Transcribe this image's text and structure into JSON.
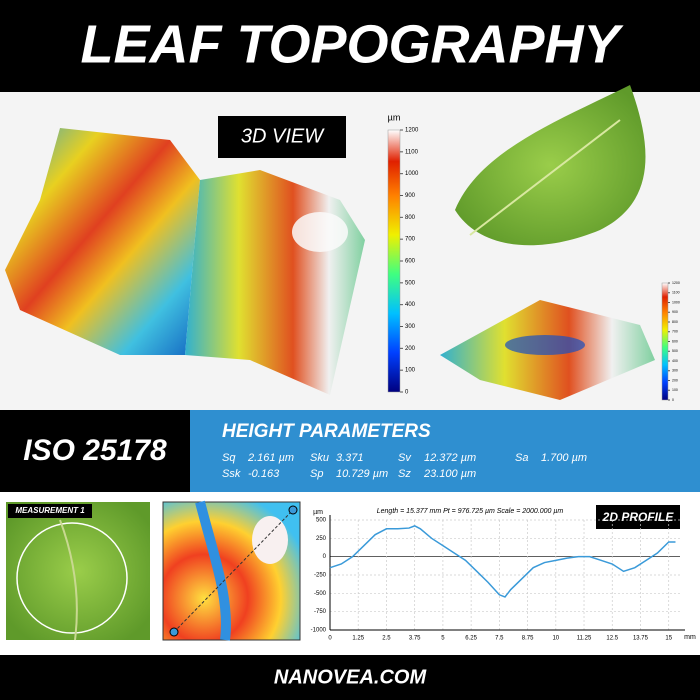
{
  "header": {
    "title": "LEAF TOPOGRAPHY"
  },
  "view_label": "3D VIEW",
  "colorbar": {
    "unit": "µm",
    "lim": [
      0,
      1200
    ],
    "ticks": [
      0,
      100,
      200,
      300,
      400,
      500,
      600,
      700,
      800,
      900,
      1000,
      1100,
      1200
    ]
  },
  "standard": "ISO 25178",
  "parameters": {
    "title": "HEIGHT PARAMETERS",
    "items": [
      {
        "name": "Sq",
        "value": "2.161 µm"
      },
      {
        "name": "Sku",
        "value": "3.371"
      },
      {
        "name": "Sv",
        "value": "12.372 µm"
      },
      {
        "name": "Sa",
        "value": "1.700 µm"
      },
      {
        "name": "Ssk",
        "value": "-0.163"
      },
      {
        "name": "Sp",
        "value": "10.729 µm"
      },
      {
        "name": "Sz",
        "value": "23.100 µm"
      }
    ]
  },
  "measurement_label": "MEASUREMENT 1",
  "chart_data": {
    "type": "line",
    "title": "2D PROFILE",
    "subtitle": "Length = 15.377 mm     Pt = 976.725 µm     Scale = 2000.000 µm",
    "x_label": "mm",
    "y_label": "µm",
    "x": [
      0,
      0.5,
      1,
      1.5,
      2,
      2.5,
      3,
      3.5,
      3.75,
      4,
      4.5,
      5,
      5.5,
      6,
      6.5,
      7,
      7.5,
      7.75,
      8,
      8.5,
      9,
      9.5,
      10,
      10.5,
      11,
      11.5,
      12,
      12.5,
      13,
      13.5,
      14,
      14.5,
      15,
      15.3
    ],
    "series": [
      {
        "name": "profile",
        "color": "#3a9ad9",
        "values": [
          -150,
          -100,
          0,
          150,
          300,
          380,
          380,
          390,
          420,
          380,
          250,
          150,
          50,
          -50,
          -200,
          -350,
          -520,
          -550,
          -450,
          -300,
          -150,
          -80,
          -50,
          -20,
          0,
          0,
          -50,
          -100,
          -200,
          -150,
          -50,
          50,
          200,
          200
        ]
      }
    ],
    "xlim": [
      0,
      15.5
    ],
    "ylim": [
      -1000,
      500
    ],
    "xticks": [
      0,
      1.25,
      2.5,
      3.75,
      5,
      6.25,
      7.5,
      8.75,
      10,
      11.25,
      12.5,
      13.75,
      15
    ],
    "yticks": [
      -1000,
      -750,
      -500,
      -250,
      0,
      250,
      500
    ],
    "grid": true
  },
  "footer": "NANOVEA.COM"
}
